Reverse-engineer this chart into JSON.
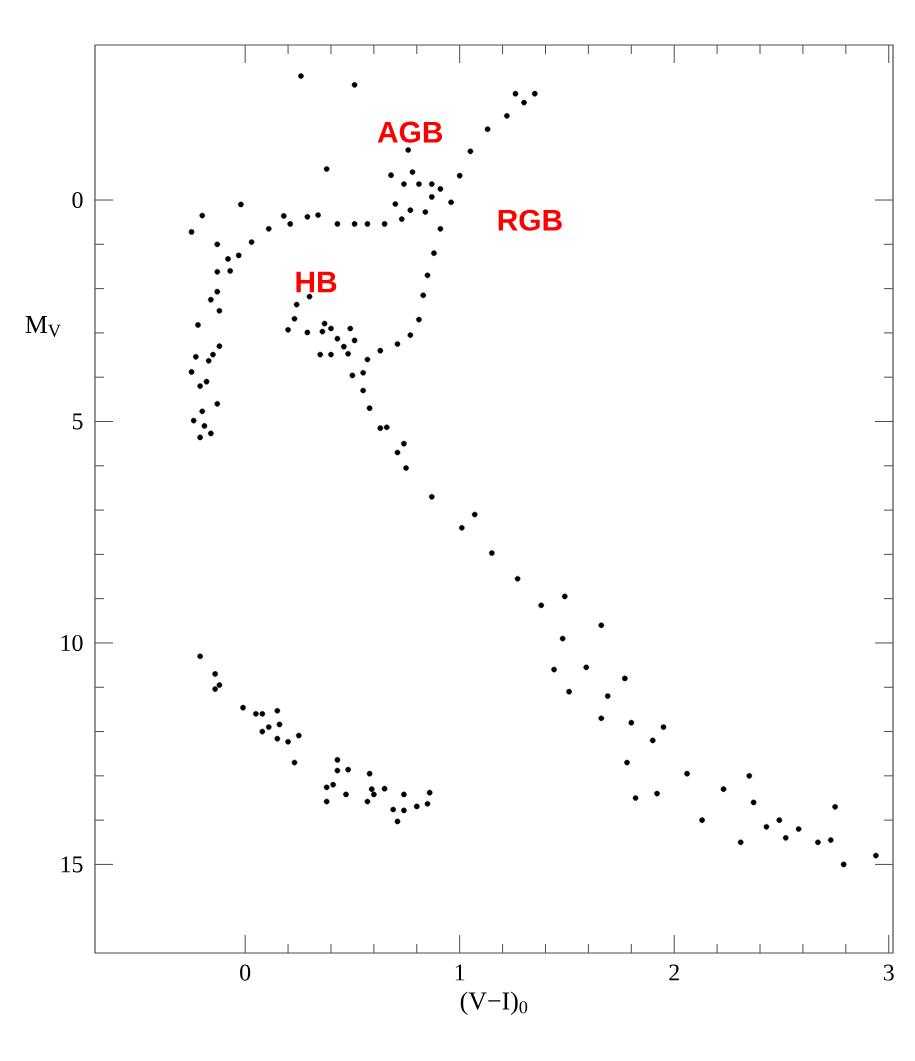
{
  "chart_data": {
    "type": "scatter",
    "xlabel": "(V−I)$_{0}$",
    "ylabel": "M$_{V}$",
    "xlim": [
      -0.7,
      3.02
    ],
    "ylim": [
      17,
      -3.5
    ],
    "xticks": [
      0,
      1,
      2,
      3
    ],
    "yticks": [
      0,
      5,
      10,
      15
    ],
    "marker": "circle",
    "grid": false,
    "annotations": [
      "AGB",
      "RGB",
      "HB"
    ],
    "series": [
      {
        "color": "#000000",
        "x": [
          0.26,
          0.51,
          1.35,
          1.26,
          1.3,
          1.22,
          1.13,
          1.05,
          1.0,
          0.96,
          0.91,
          0.88,
          0.85,
          0.83,
          0.81,
          0.77,
          0.71,
          0.63,
          0.57,
          0.55,
          0.55,
          0.58,
          0.63,
          0.71,
          0.66,
          0.75,
          0.87,
          1.01,
          1.15,
          1.27,
          1.38,
          1.48,
          1.59,
          1.69,
          1.8,
          1.9,
          2.06,
          2.23,
          2.37,
          2.49,
          2.58,
          2.67,
          2.79,
          2.94,
          2.75,
          2.35,
          2.73,
          2.31,
          2.13,
          1.82,
          1.92,
          2.43,
          2.52,
          1.95,
          1.66,
          1.51,
          1.44,
          1.07,
          0.74,
          1.66,
          1.78,
          1.49,
          1.77,
          -0.25,
          -0.2,
          -0.02,
          -0.13,
          -0.08,
          -0.07,
          -0.03,
          0.03,
          0.11,
          0.21,
          0.29,
          0.43,
          0.51,
          0.57,
          0.65,
          0.73,
          0.77,
          0.7,
          0.84,
          0.87,
          0.87,
          0.81,
          0.74,
          0.78,
          0.68,
          0.76,
          0.38,
          0.91,
          0.34,
          0.18,
          -0.13,
          -0.13,
          -0.16,
          -0.12,
          -0.22,
          -0.12,
          -0.15,
          -0.23,
          -0.17,
          -0.25,
          -0.18,
          -0.21,
          -0.13,
          -0.2,
          -0.24,
          -0.19,
          -0.16,
          -0.21,
          0.3,
          0.24,
          0.23,
          0.2,
          0.29,
          0.37,
          0.36,
          0.4,
          0.43,
          0.49,
          0.51,
          0.46,
          0.4,
          0.35,
          0.48,
          0.5,
          -0.21,
          -0.14,
          -0.14,
          -0.12,
          -0.01,
          0.05,
          0.08,
          0.15,
          0.16,
          0.11,
          0.08,
          0.15,
          0.2,
          0.25,
          0.23,
          0.43,
          0.43,
          0.48,
          0.38,
          0.41,
          0.38,
          0.47,
          0.58,
          0.59,
          0.57,
          0.6,
          0.65,
          0.69,
          0.71,
          0.74,
          0.74,
          0.8,
          0.85,
          0.86
        ],
        "values": [
          -2.8,
          -2.6,
          -2.4,
          -2.4,
          -2.2,
          -1.9,
          -1.6,
          -1.1,
          -0.55,
          0.05,
          0.65,
          1.2,
          1.7,
          2.15,
          2.7,
          3.05,
          3.25,
          3.4,
          3.6,
          3.9,
          4.3,
          4.7,
          5.15,
          5.7,
          5.13,
          6.05,
          6.7,
          7.4,
          7.97,
          8.55,
          9.15,
          9.9,
          10.55,
          11.2,
          11.8,
          12.2,
          12.95,
          13.3,
          13.6,
          14.0,
          14.2,
          14.5,
          15.0,
          14.8,
          13.7,
          13.0,
          14.45,
          14.5,
          14.0,
          13.5,
          13.4,
          14.15,
          14.4,
          11.9,
          9.6,
          11.1,
          10.6,
          7.1,
          5.5,
          11.7,
          12.7,
          8.95,
          10.8,
          0.72,
          0.35,
          0.1,
          1.0,
          1.33,
          1.6,
          1.25,
          0.95,
          0.65,
          0.54,
          0.38,
          0.54,
          0.54,
          0.54,
          0.54,
          0.43,
          0.23,
          0.09,
          0.27,
          -0.07,
          -0.36,
          -0.36,
          -0.36,
          -0.63,
          -0.56,
          -1.13,
          -0.7,
          -0.25,
          0.34,
          0.36,
          1.62,
          2.07,
          2.25,
          2.5,
          2.82,
          3.3,
          3.49,
          3.54,
          3.63,
          3.88,
          4.1,
          4.2,
          4.6,
          4.77,
          4.98,
          5.1,
          5.27,
          5.36,
          2.18,
          2.36,
          2.68,
          2.93,
          2.99,
          2.79,
          2.97,
          2.9,
          3.13,
          2.9,
          3.17,
          3.31,
          3.49,
          3.49,
          3.47,
          3.96,
          10.3,
          10.7,
          11.04,
          10.95,
          11.46,
          11.6,
          11.6,
          11.53,
          11.84,
          11.9,
          12.0,
          12.16,
          12.23,
          12.09,
          12.7,
          12.64,
          12.88,
          12.86,
          13.26,
          13.2,
          13.58,
          13.42,
          12.95,
          13.3,
          13.58,
          13.42,
          13.29,
          13.76,
          14.03,
          13.42,
          13.78,
          13.69,
          13.63,
          13.38
        ]
      }
    ]
  }
}
